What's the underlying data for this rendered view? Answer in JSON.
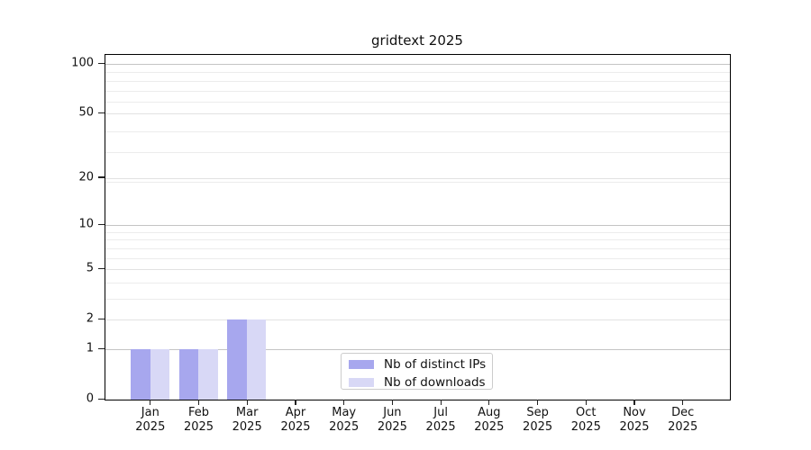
{
  "title": "gridtext 2025",
  "legend": {
    "items": [
      {
        "label": "Nb of distinct IPs",
        "color": "#a7a7ee"
      },
      {
        "label": "Nb of downloads",
        "color": "#d8d8f6"
      }
    ]
  },
  "chart_data": {
    "type": "bar",
    "title": "gridtext 2025",
    "year": "2025",
    "categories": [
      "Jan",
      "Feb",
      "Mar",
      "Apr",
      "May",
      "Jun",
      "Jul",
      "Aug",
      "Sep",
      "Oct",
      "Nov",
      "Dec"
    ],
    "series": [
      {
        "name": "Nb of distinct IPs",
        "color": "#a7a7ee",
        "values": [
          1,
          1,
          2,
          0,
          0,
          0,
          0,
          0,
          0,
          0,
          0,
          0
        ]
      },
      {
        "name": "Nb of downloads",
        "color": "#d8d8f6",
        "values": [
          1,
          1,
          2,
          0,
          0,
          0,
          0,
          0,
          0,
          0,
          0,
          0
        ]
      }
    ],
    "xlabel": "",
    "ylabel": "",
    "y_axis": {
      "scale": "log1p",
      "ticks": [
        0,
        1,
        2,
        5,
        10,
        20,
        50,
        100
      ],
      "minor_gridlines": [
        3,
        4,
        6,
        7,
        8,
        9,
        19,
        29,
        39,
        59,
        69,
        79,
        89
      ],
      "emphasized_gridlines": [
        1,
        10,
        100
      ],
      "range_max": 112
    },
    "grid": true,
    "legend_position": "lower-center",
    "colors": {
      "grid_strong": "#c4c4c4",
      "grid_major": "#e2e2e2",
      "grid_minor": "#ececec",
      "spine": "#000000"
    }
  }
}
